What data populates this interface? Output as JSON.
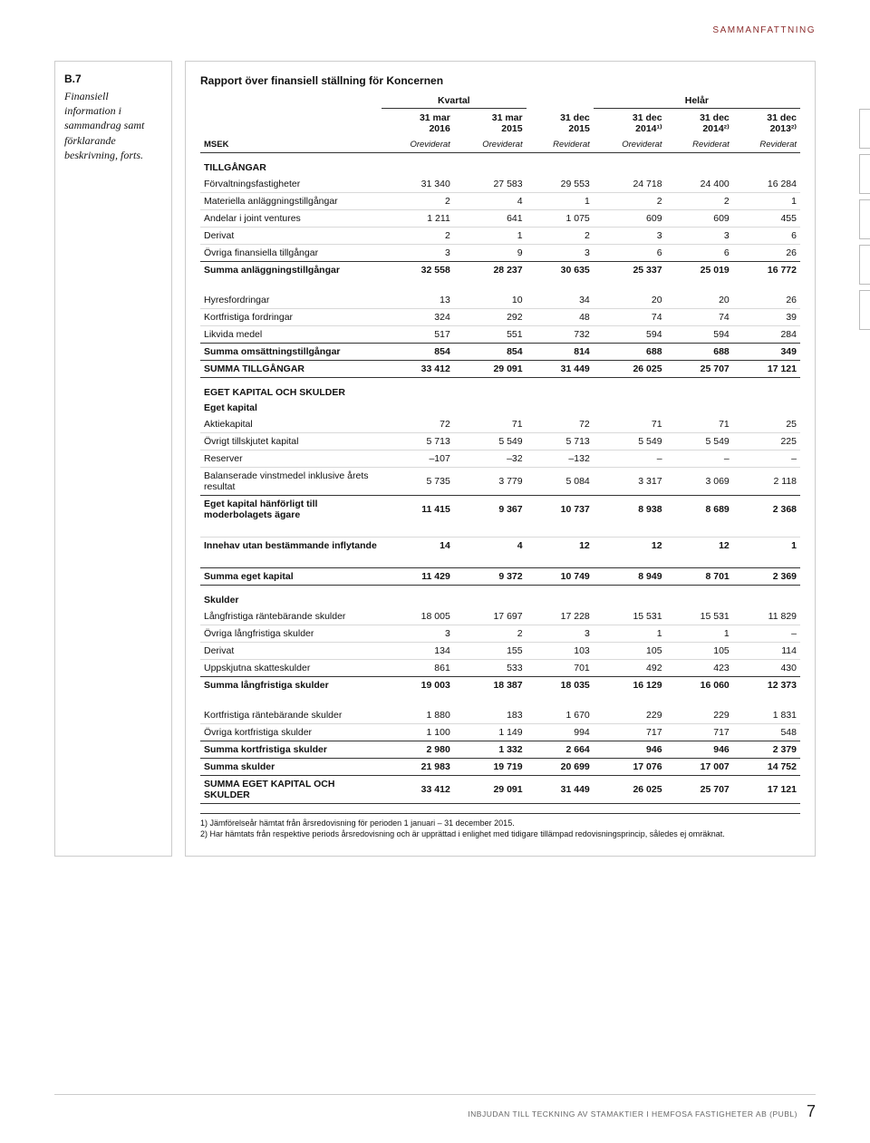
{
  "kicker": "SAMMANFATTNING",
  "left": {
    "id": "B.7",
    "title": "Finansiell information i sammandrag samt förklarande beskrivning, forts."
  },
  "report_title": "Rapport över finansiell ställning för Koncernen",
  "period_headers": {
    "kvartal": "Kvartal",
    "helar": "Helår"
  },
  "msek": "MSEK",
  "cols": [
    {
      "l1": "31 mar",
      "l2": "2016",
      "audit": "Oreviderat"
    },
    {
      "l1": "31 mar",
      "l2": "2015",
      "audit": "Oreviderat"
    },
    {
      "l1": "31 dec",
      "l2": "2015",
      "audit": "Reviderat"
    },
    {
      "l1": "31 dec",
      "l2": "2014¹⁾",
      "audit": "Oreviderat"
    },
    {
      "l1": "31 dec",
      "l2": "2014²⁾",
      "audit": "Reviderat"
    },
    {
      "l1": "31 dec",
      "l2": "2013²⁾",
      "audit": "Reviderat"
    }
  ],
  "sections": {
    "tillgangar_head": "TILLGÅNGAR",
    "tillgangar": [
      {
        "label": "Förvaltningsfastigheter",
        "v": [
          "31 340",
          "27 583",
          "29 553",
          "24 718",
          "24 400",
          "16 284"
        ]
      },
      {
        "label": "Materiella anläggningstillgångar",
        "v": [
          "2",
          "4",
          "1",
          "2",
          "2",
          "1"
        ]
      },
      {
        "label": "Andelar i joint ventures",
        "v": [
          "1 211",
          "641",
          "1 075",
          "609",
          "609",
          "455"
        ]
      },
      {
        "label": "Derivat",
        "v": [
          "2",
          "1",
          "2",
          "3",
          "3",
          "6"
        ]
      },
      {
        "label": "Övriga finansiella tillgångar",
        "v": [
          "3",
          "9",
          "3",
          "6",
          "6",
          "26"
        ]
      }
    ],
    "tillgangar_sum": {
      "label": "Summa anläggningstillgångar",
      "v": [
        "32 558",
        "28 237",
        "30 635",
        "25 337",
        "25 019",
        "16 772"
      ]
    },
    "oms": [
      {
        "label": "Hyresfordringar",
        "v": [
          "13",
          "10",
          "34",
          "20",
          "20",
          "26"
        ]
      },
      {
        "label": "Kortfristiga fordringar",
        "v": [
          "324",
          "292",
          "48",
          "74",
          "74",
          "39"
        ]
      },
      {
        "label": "Likvida medel",
        "v": [
          "517",
          "551",
          "732",
          "594",
          "594",
          "284"
        ]
      }
    ],
    "oms_sum": {
      "label": "Summa omsättningstillgångar",
      "v": [
        "854",
        "854",
        "814",
        "688",
        "688",
        "349"
      ]
    },
    "total_assets": {
      "label": "SUMMA TILLGÅNGAR",
      "v": [
        "33 412",
        "29 091",
        "31 449",
        "26 025",
        "25 707",
        "17 121"
      ]
    },
    "ek_head": "EGET KAPITAL OCH SKULDER",
    "ek_sub": "Eget kapital",
    "ek": [
      {
        "label": "Aktiekapital",
        "v": [
          "72",
          "71",
          "72",
          "71",
          "71",
          "25"
        ]
      },
      {
        "label": "Övrigt tillskjutet kapital",
        "v": [
          "5 713",
          "5 549",
          "5 713",
          "5 549",
          "5 549",
          "225"
        ]
      },
      {
        "label": "Reserver",
        "v": [
          "–107",
          "–32",
          "–132",
          "–",
          "–",
          "–"
        ]
      },
      {
        "label": "Balanserade vinstmedel inklusive årets resultat",
        "v": [
          "5 735",
          "3 779",
          "5 084",
          "3 317",
          "3 069",
          "2 118"
        ]
      }
    ],
    "ek_parent": {
      "label": "Eget kapital hänförligt till moderbolagets ägare",
      "v": [
        "11 415",
        "9 367",
        "10 737",
        "8 938",
        "8 689",
        "2 368"
      ]
    },
    "nci": {
      "label": "Innehav utan bestämmande inflytande",
      "v": [
        "14",
        "4",
        "12",
        "12",
        "12",
        "1"
      ]
    },
    "ek_total": {
      "label": "Summa eget kapital",
      "v": [
        "11 429",
        "9 372",
        "10 749",
        "8 949",
        "8 701",
        "2 369"
      ]
    },
    "skulder_sub": "Skulder",
    "long": [
      {
        "label": "Långfristiga räntebärande skulder",
        "v": [
          "18 005",
          "17 697",
          "17 228",
          "15 531",
          "15 531",
          "11 829"
        ]
      },
      {
        "label": "Övriga långfristiga skulder",
        "v": [
          "3",
          "2",
          "3",
          "1",
          "1",
          "–"
        ]
      },
      {
        "label": "Derivat",
        "v": [
          "134",
          "155",
          "103",
          "105",
          "105",
          "114"
        ]
      },
      {
        "label": "Uppskjutna skatteskulder",
        "v": [
          "861",
          "533",
          "701",
          "492",
          "423",
          "430"
        ]
      }
    ],
    "long_sum": {
      "label": "Summa långfristiga skulder",
      "v": [
        "19 003",
        "18 387",
        "18 035",
        "16 129",
        "16 060",
        "12 373"
      ]
    },
    "short": [
      {
        "label": "Kortfristiga räntebärande skulder",
        "v": [
          "1 880",
          "183",
          "1 670",
          "229",
          "229",
          "1 831"
        ]
      },
      {
        "label": "Övriga kortfristiga skulder",
        "v": [
          "1 100",
          "1 149",
          "994",
          "717",
          "717",
          "548"
        ]
      }
    ],
    "short_sum": {
      "label": "Summa kortfristiga skulder",
      "v": [
        "2 980",
        "1 332",
        "2 664",
        "946",
        "946",
        "2 379"
      ]
    },
    "skulder_total": {
      "label": "Summa skulder",
      "v": [
        "21 983",
        "19 719",
        "20 699",
        "17 076",
        "17 007",
        "14 752"
      ]
    },
    "grand_total": {
      "label": "SUMMA EGET KAPITAL OCH SKULDER",
      "v": [
        "33 412",
        "29 091",
        "31 449",
        "26 025",
        "25 707",
        "17 121"
      ]
    }
  },
  "notes": [
    "1) Jämförelseår hämtat från årsredovisning för perioden 1 januari – 31 december 2015.",
    "2) Har hämtats från respektive periods årsredovisning och är upprättad i enlighet med tidigare tillämpad redovisningsprincip, således ej omräknat."
  ],
  "footer": {
    "text": "INBJUDAN TILL TECKNING AV STAMAKTIER I HEMFOSA FASTIGHETER AB (PUBL)",
    "page": "7"
  },
  "colors": {
    "kicker": "#8b2c2c",
    "border": "#cccccc",
    "row_rule": "#d9d9d9",
    "strong_rule": "#333333"
  }
}
